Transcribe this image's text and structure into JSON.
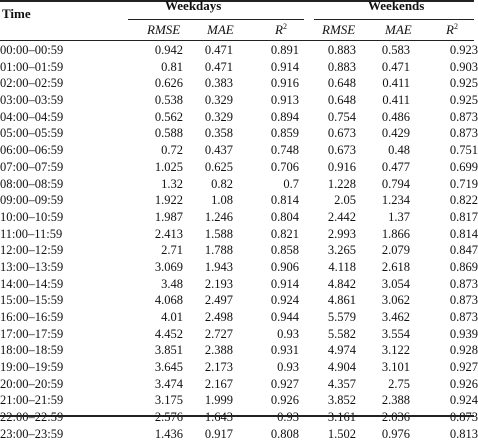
{
  "header": {
    "time_label": "Time",
    "groups": [
      "Weekdays",
      "Weekends"
    ],
    "metrics": [
      {
        "name": "RMSE",
        "sup": ""
      },
      {
        "name": "MAE",
        "sup": ""
      },
      {
        "name": "R",
        "sup": "2"
      },
      {
        "name": "RMSE",
        "sup": ""
      },
      {
        "name": "MAE",
        "sup": ""
      },
      {
        "name": "R",
        "sup": "2"
      }
    ]
  },
  "rows": [
    {
      "time": "00:00–00:59",
      "v": [
        "0.942",
        "0.471",
        "0.891",
        "0.883",
        "0.583",
        "0.923"
      ]
    },
    {
      "time": "01:00–01:59",
      "v": [
        "0.81",
        "0.471",
        "0.914",
        "0.883",
        "0.471",
        "0.903"
      ]
    },
    {
      "time": "02:00–02:59",
      "v": [
        "0.626",
        "0.383",
        "0.916",
        "0.648",
        "0.411",
        "0.925"
      ]
    },
    {
      "time": "03:00–03:59",
      "v": [
        "0.538",
        "0.329",
        "0.913",
        "0.648",
        "0.411",
        "0.925"
      ]
    },
    {
      "time": "04:00–04:59",
      "v": [
        "0.562",
        "0.329",
        "0.894",
        "0.754",
        "0.486",
        "0.873"
      ]
    },
    {
      "time": "05:00–05:59",
      "v": [
        "0.588",
        "0.358",
        "0.859",
        "0.673",
        "0.429",
        "0.873"
      ]
    },
    {
      "time": "06:00–06:59",
      "v": [
        "0.72",
        "0.437",
        "0.748",
        "0.673",
        "0.48",
        "0.751"
      ]
    },
    {
      "time": "07:00–07:59",
      "v": [
        "1.025",
        "0.625",
        "0.706",
        "0.916",
        "0.477",
        "0.699"
      ]
    },
    {
      "time": "08:00–08:59",
      "v": [
        "1.32",
        "0.82",
        "0.7",
        "1.228",
        "0.794",
        "0.719"
      ]
    },
    {
      "time": "09:00–09:59",
      "v": [
        "1.922",
        "1.08",
        "0.814",
        "2.05",
        "1.234",
        "0.822"
      ]
    },
    {
      "time": "10:00–10:59",
      "v": [
        "1.987",
        "1.246",
        "0.804",
        "2.442",
        "1.37",
        "0.817"
      ]
    },
    {
      "time": "11:00–11:59",
      "v": [
        "2.413",
        "1.588",
        "0.821",
        "2.993",
        "1.866",
        "0.814"
      ]
    },
    {
      "time": "12:00–12:59",
      "v": [
        "2.71",
        "1.788",
        "0.858",
        "3.265",
        "2.079",
        "0.847"
      ]
    },
    {
      "time": "13:00–13:59",
      "v": [
        "3.069",
        "1.943",
        "0.906",
        "4.118",
        "2.618",
        "0.869"
      ]
    },
    {
      "time": "14:00–14:59",
      "v": [
        "3.48",
        "2.193",
        "0.914",
        "4.842",
        "3.054",
        "0.873"
      ]
    },
    {
      "time": "15:00–15:59",
      "v": [
        "4.068",
        "2.497",
        "0.924",
        "4.861",
        "3.062",
        "0.873"
      ]
    },
    {
      "time": "16:00–16:59",
      "v": [
        "4.01",
        "2.498",
        "0.944",
        "5.579",
        "3.462",
        "0.873"
      ]
    },
    {
      "time": "17:00–17:59",
      "v": [
        "4.452",
        "2.727",
        "0.93",
        "5.582",
        "3.554",
        "0.939"
      ]
    },
    {
      "time": "18:00–18:59",
      "v": [
        "3.851",
        "2.388",
        "0.931",
        "4.974",
        "3.122",
        "0.928"
      ]
    },
    {
      "time": "19:00–19:59",
      "v": [
        "3.645",
        "2.173",
        "0.93",
        "4.904",
        "3.101",
        "0.927"
      ]
    },
    {
      "time": "20:00–20:59",
      "v": [
        "3.474",
        "2.167",
        "0.927",
        "4.357",
        "2.75",
        "0.926"
      ]
    },
    {
      "time": "21:00–21:59",
      "v": [
        "3.175",
        "1.999",
        "0.926",
        "3.852",
        "2.388",
        "0.924"
      ]
    },
    {
      "time": "22:00–22:59",
      "v": [
        "2.576",
        "1.643",
        "0.93",
        "3.161",
        "2.036",
        "0.873"
      ]
    },
    {
      "time": "23:00–23:59",
      "v": [
        "1.436",
        "0.917",
        "0.808",
        "1.502",
        "0.976",
        "0.813"
      ]
    }
  ]
}
